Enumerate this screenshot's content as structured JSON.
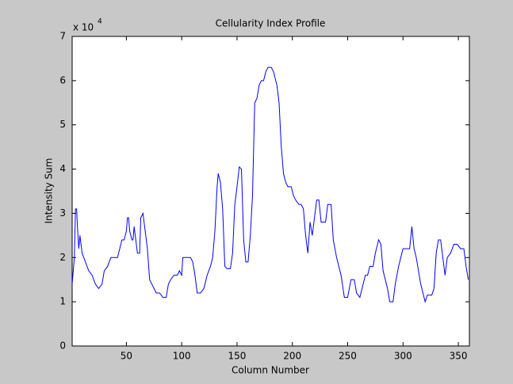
{
  "chart_data": {
    "type": "line",
    "title": "Cellularity Index Profile",
    "x_label": "Column Number",
    "y_label": "Intensity Sum",
    "y_multiplier": "x 10",
    "y_multiplier_exponent": "4",
    "xlim": [
      1,
      360
    ],
    "ylim": [
      0,
      7
    ],
    "xticks": [
      50,
      100,
      150,
      200,
      250,
      300,
      350
    ],
    "yticks": [
      0,
      1,
      2,
      3,
      4,
      5,
      6,
      7
    ],
    "grid": false,
    "series": [
      {
        "name": "Intensity Sum",
        "color": "#0000ff",
        "x": [
          1,
          2,
          3,
          4,
          5,
          6,
          7,
          8,
          10,
          13,
          16,
          19,
          22,
          25,
          28,
          30,
          33,
          36,
          42,
          44,
          46,
          48,
          50,
          51,
          52,
          53,
          55,
          56,
          57,
          58,
          60,
          62,
          63,
          65,
          67,
          69,
          71,
          73,
          75,
          77,
          80,
          83,
          86,
          88,
          90,
          93,
          96,
          98,
          100,
          101,
          104,
          108,
          110,
          112,
          114,
          117,
          120,
          123,
          126,
          128,
          130,
          132,
          133,
          135,
          137,
          139,
          141,
          144,
          146,
          148,
          150,
          152,
          154,
          156,
          158,
          160,
          162,
          164,
          166,
          168,
          170,
          172,
          174,
          176,
          178,
          181,
          183,
          186,
          188,
          190,
          192,
          194,
          196,
          199,
          201,
          203,
          206,
          208,
          210,
          212,
          214,
          216,
          218,
          220,
          222,
          224,
          226,
          228,
          230,
          232,
          235,
          237,
          240,
          242,
          244,
          247,
          250,
          253,
          256,
          258,
          261,
          264,
          266,
          268,
          270,
          273,
          275,
          278,
          280,
          282,
          284,
          286,
          288,
          291,
          293,
          296,
          298,
          300,
          303,
          306,
          308,
          310,
          312,
          314,
          316,
          318,
          320,
          322,
          326,
          328,
          330,
          332,
          334,
          336,
          338,
          340,
          343,
          346,
          349,
          352,
          355,
          357,
          359
        ],
        "values": [
          1.4,
          1.7,
          2.0,
          3.1,
          3.1,
          2.6,
          2.2,
          2.5,
          2.1,
          1.9,
          1.7,
          1.6,
          1.4,
          1.3,
          1.4,
          1.7,
          1.8,
          2.0,
          2.0,
          2.2,
          2.4,
          2.4,
          2.6,
          2.9,
          2.9,
          2.6,
          2.4,
          2.4,
          2.7,
          2.5,
          2.1,
          2.1,
          2.9,
          3.0,
          2.6,
          2.2,
          1.5,
          1.4,
          1.3,
          1.2,
          1.2,
          1.1,
          1.1,
          1.4,
          1.5,
          1.6,
          1.6,
          1.7,
          1.6,
          2.0,
          2.0,
          2.0,
          1.9,
          1.6,
          1.2,
          1.2,
          1.3,
          1.6,
          1.8,
          2.0,
          2.6,
          3.6,
          3.9,
          3.7,
          3.1,
          1.8,
          1.75,
          1.75,
          2.1,
          3.2,
          3.6,
          4.05,
          4.0,
          2.4,
          1.9,
          1.9,
          2.5,
          3.4,
          5.5,
          5.6,
          5.9,
          6.0,
          6.0,
          6.2,
          6.3,
          6.3,
          6.2,
          5.9,
          5.5,
          4.5,
          3.9,
          3.7,
          3.6,
          3.6,
          3.4,
          3.3,
          3.2,
          3.2,
          3.1,
          2.5,
          2.1,
          2.8,
          2.5,
          2.9,
          3.3,
          3.3,
          2.8,
          2.8,
          2.8,
          3.2,
          3.2,
          2.4,
          2.0,
          1.8,
          1.6,
          1.1,
          1.1,
          1.5,
          1.5,
          1.2,
          1.1,
          1.4,
          1.6,
          1.6,
          1.8,
          1.8,
          2.1,
          2.4,
          2.3,
          1.7,
          1.5,
          1.3,
          1.0,
          1.0,
          1.4,
          1.8,
          2.0,
          2.2,
          2.2,
          2.2,
          2.7,
          2.2,
          2.0,
          1.7,
          1.4,
          1.2,
          1.0,
          1.15,
          1.15,
          1.3,
          2.1,
          2.4,
          2.4,
          2.0,
          1.6,
          2.0,
          2.1,
          2.3,
          2.3,
          2.2,
          2.2,
          1.8,
          1.5
        ]
      }
    ]
  }
}
